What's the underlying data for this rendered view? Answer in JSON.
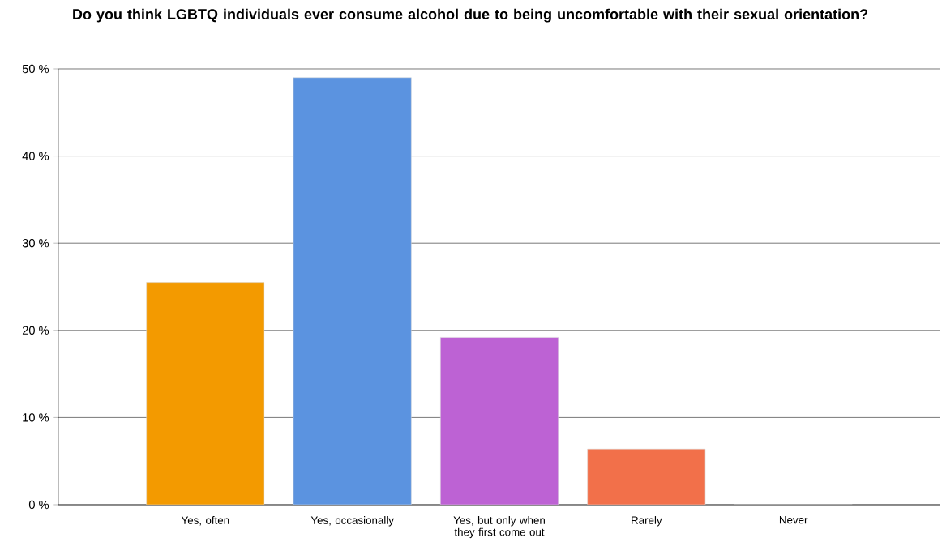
{
  "chart_data": {
    "type": "bar",
    "title": "Do you think LGBTQ individuals ever consume alcohol due to being uncomfortable with their sexual orientation?",
    "categories": [
      "Yes, often",
      "Yes, occasionally",
      "Yes, but only when they first come out",
      "Rarely",
      "Never"
    ],
    "values": [
      25.5,
      49,
      19.2,
      6.4,
      0
    ],
    "colors": [
      "#f39a00",
      "#5b93e0",
      "#bd62d4",
      "#f2704a",
      "#999999"
    ],
    "ylim": [
      0,
      50
    ],
    "yticks": [
      {
        "value": 0,
        "label": "0 %"
      },
      {
        "value": 10,
        "label": "10 %"
      },
      {
        "value": 20,
        "label": "20 %"
      },
      {
        "value": 30,
        "label": "30 %"
      },
      {
        "value": 40,
        "label": "40 %"
      },
      {
        "value": 50,
        "label": "50 %"
      }
    ],
    "grid": "y"
  }
}
